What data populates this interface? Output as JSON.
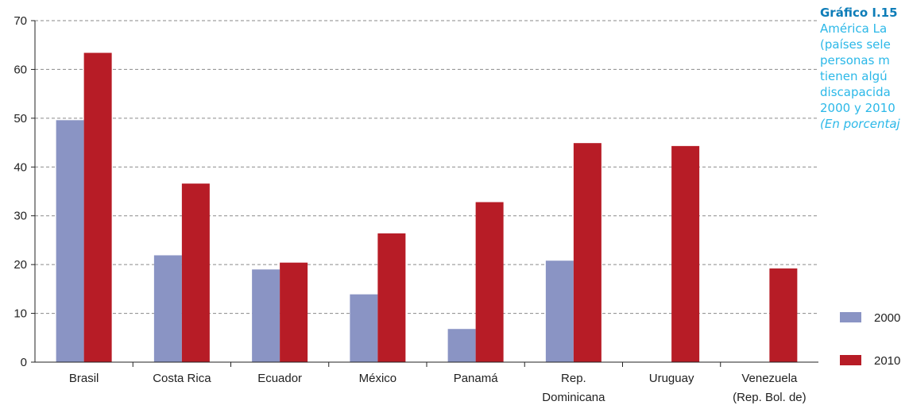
{
  "chart_data": {
    "type": "bar",
    "title_lines": [
      "Gráfico I.15",
      "América La",
      "(países sele",
      "personas m",
      "tienen algú",
      "discapacida",
      "2000 y 2010"
    ],
    "unit_note": "(En porcentaj",
    "categories": [
      [
        "Brasil"
      ],
      [
        "Costa Rica"
      ],
      [
        "Ecuador"
      ],
      [
        "México"
      ],
      [
        "Panamá"
      ],
      [
        "Rep.",
        "Dominicana"
      ],
      [
        "Uruguay"
      ],
      [
        "Venezuela",
        "(Rep. Bol. de)"
      ]
    ],
    "series": [
      {
        "name": "2000",
        "color": "#8a94c4",
        "values": [
          49.6,
          21.9,
          19.0,
          13.9,
          6.8,
          20.8,
          null,
          null
        ]
      },
      {
        "name": "2010",
        "color": "#b71c26",
        "values": [
          63.4,
          36.6,
          20.4,
          26.4,
          32.8,
          44.9,
          44.3,
          19.2
        ]
      }
    ],
    "yticks": [
      0,
      10,
      20,
      30,
      40,
      50,
      60,
      70
    ],
    "ylim": [
      0,
      70
    ],
    "grid": true,
    "legend": "right"
  }
}
